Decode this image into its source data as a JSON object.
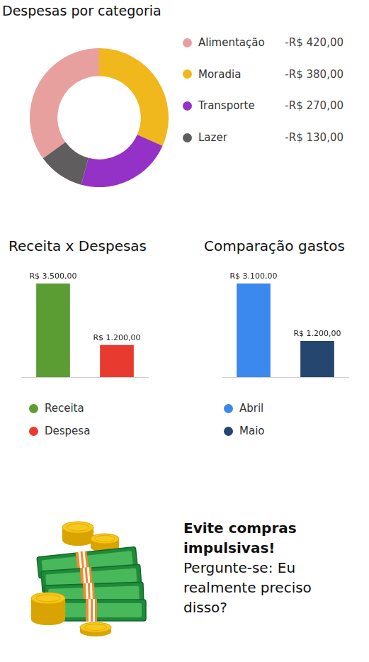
{
  "chart_data": [
    {
      "type": "doughnut",
      "title": "Despesas por categoria",
      "categories": [
        "Alimentação",
        "Moradia",
        "Transporte",
        "Lazer"
      ],
      "values": [
        -420,
        -380,
        -270,
        -130
      ],
      "value_labels": [
        "-R$ 420,00",
        "-R$ 380,00",
        "-R$ 270,00",
        "-R$ 130,00"
      ],
      "colors": [
        "#e8a09e",
        "#f0b81c",
        "#9431c6",
        "#5f5d5d"
      ],
      "legend": "right"
    },
    {
      "type": "bar",
      "title": "Receita x Despesas",
      "categories": [
        "Receita",
        "Despesa"
      ],
      "values": [
        3500,
        1200
      ],
      "value_labels": [
        "R$ 3.500,00",
        "R$ 1.200,00"
      ],
      "colors": [
        "#5b9d32",
        "#e93a30"
      ],
      "ylim": [
        0,
        3500
      ],
      "data_labels": true,
      "tick_labels": false,
      "legend": "bottom"
    },
    {
      "type": "bar",
      "title": "Comparação gastos",
      "categories": [
        "Abril",
        "Maio"
      ],
      "values": [
        3100,
        1200
      ],
      "value_labels": [
        "R$ 3.100,00",
        "R$ 1.200,00"
      ],
      "colors": [
        "#3b88ee",
        "#24466f"
      ],
      "ylim": [
        0,
        3100
      ],
      "data_labels": true,
      "tick_labels": false,
      "legend": "bottom"
    }
  ],
  "tip": {
    "title": "Evite compras impulsivas!",
    "text": "Pergunte-se: Eu realmente preciso disso?"
  }
}
